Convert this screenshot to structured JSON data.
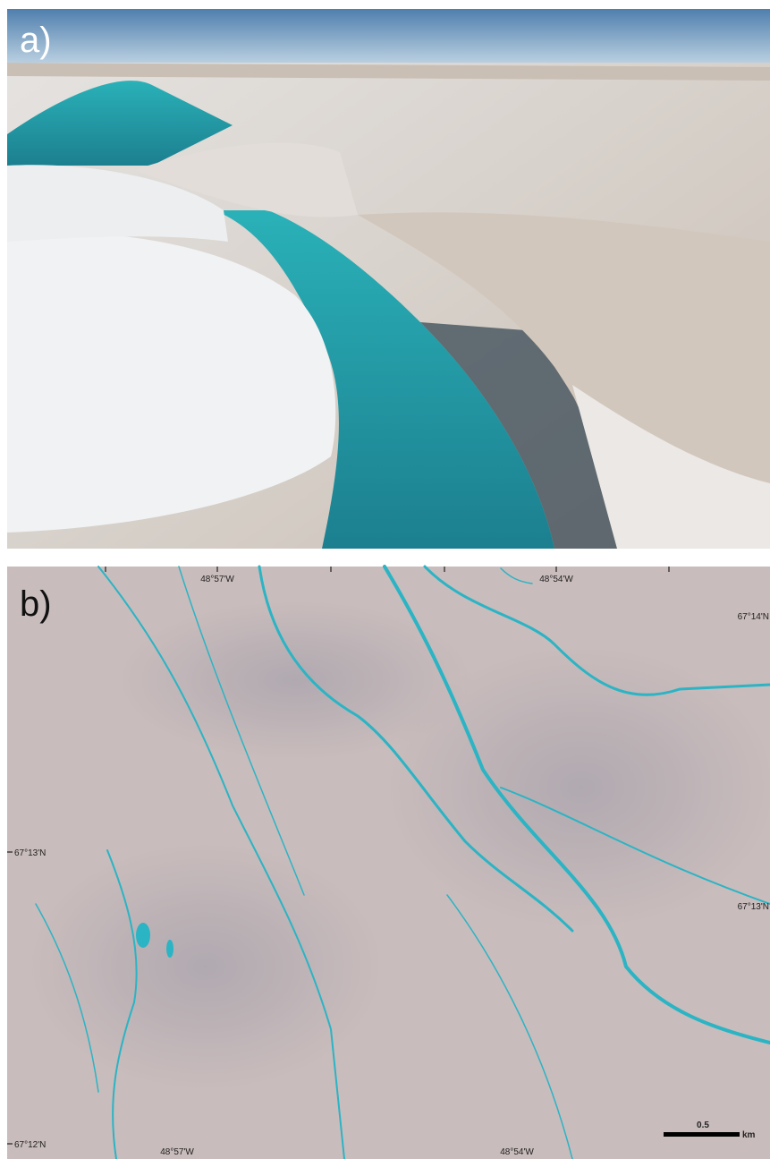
{
  "panel_a": {
    "label": "a)"
  },
  "panel_b": {
    "label": "b)",
    "longitude_top": [
      "48°57'W",
      "48°54'W"
    ],
    "longitude_bottom": [
      "48°57'W",
      "48°54'W"
    ],
    "latitude_left": [
      "67°13'N",
      "67°12'N"
    ],
    "latitude_right": [
      "67°14'N",
      "67°13'N"
    ],
    "scale_bar": {
      "value": "0.5",
      "unit": "km"
    }
  }
}
